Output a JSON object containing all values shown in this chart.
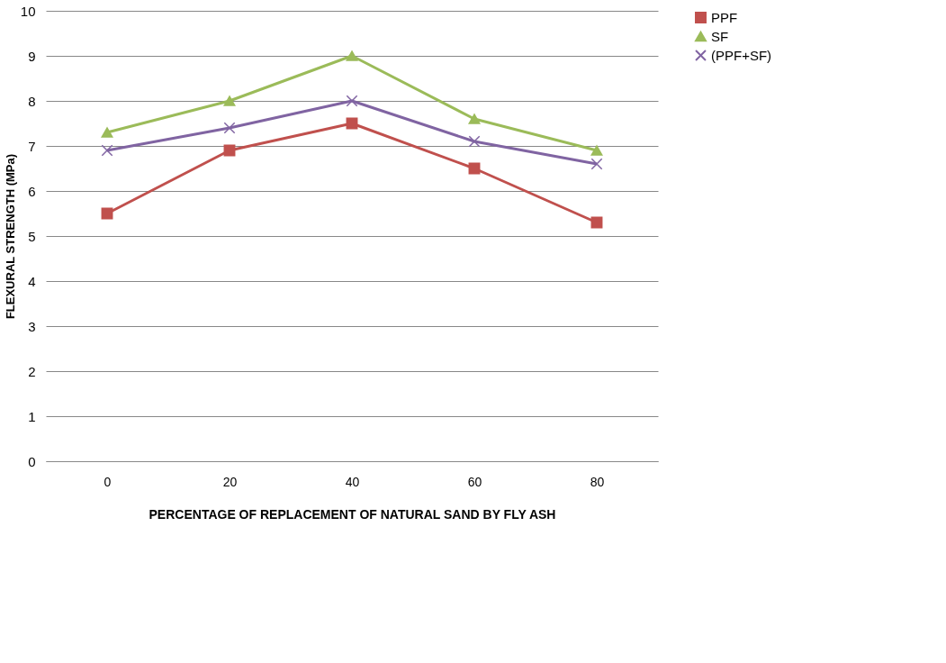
{
  "chart_data": {
    "type": "line",
    "xlabel": "PERCENTAGE OF REPLACEMENT OF NATURAL SAND BY FLY ASH",
    "ylabel": "FLEXURAL STRENGTH (MPa)",
    "categories": [
      "0",
      "20",
      "40",
      "60",
      "80"
    ],
    "series": [
      {
        "name": "PPF",
        "color": "#c0504d",
        "marker": "square",
        "values": [
          5.5,
          6.9,
          7.5,
          6.5,
          5.3
        ]
      },
      {
        "name": "SF",
        "color": "#9bbb59",
        "marker": "triangle",
        "values": [
          7.3,
          8.0,
          9.0,
          7.6,
          6.9
        ]
      },
      {
        "name": "(PPF+SF)",
        "color": "#8064a2",
        "marker": "cross",
        "values": [
          6.9,
          7.4,
          8.0,
          7.1,
          6.6
        ]
      }
    ],
    "ylim": [
      0,
      10
    ],
    "yticks": [
      0,
      1,
      2,
      3,
      4,
      5,
      6,
      7,
      8,
      9,
      10
    ],
    "grid": "y",
    "legend": "right"
  }
}
